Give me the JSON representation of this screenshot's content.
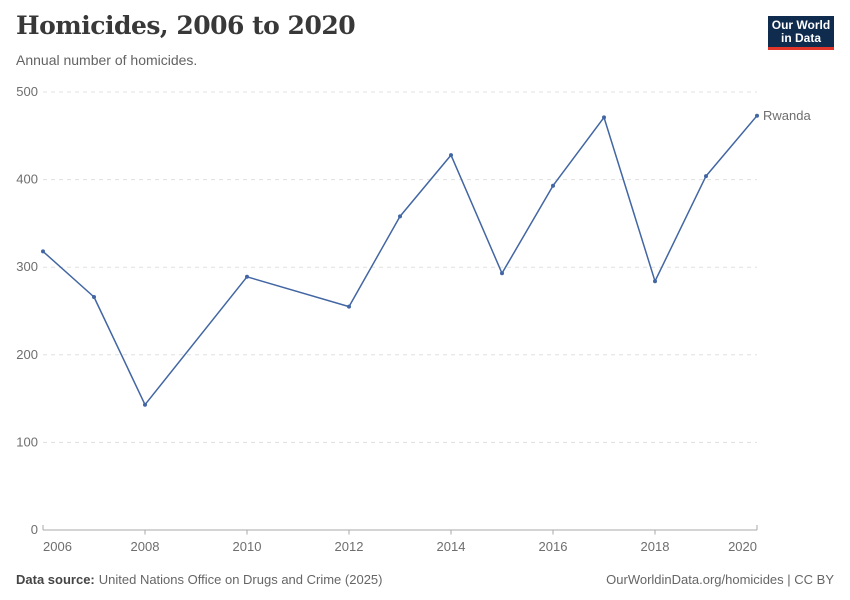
{
  "header": {
    "title": "Homicides, 2006 to 2020",
    "subtitle": "Annual number of homicides."
  },
  "logo": {
    "line1": "Our World",
    "line2": "in Data",
    "bg_color": "#0F2B4E",
    "accent_color": "#E2362B"
  },
  "chart_data": {
    "type": "line",
    "title": "Homicides, 2006 to 2020",
    "subtitle": "Annual number of homicides.",
    "xlabel": "",
    "ylabel": "",
    "xlim": [
      2006,
      2020
    ],
    "ylim": [
      0,
      500
    ],
    "x_ticks": [
      2006,
      2008,
      2010,
      2012,
      2014,
      2016,
      2018,
      2020
    ],
    "y_ticks": [
      0,
      100,
      200,
      300,
      400,
      500
    ],
    "grid": "horizontal-dashed",
    "legend_position": "entity-label-at-line-end",
    "series": [
      {
        "name": "Rwanda",
        "color": "#4266A3",
        "points": [
          {
            "year": 2006,
            "value": 318
          },
          {
            "year": 2007,
            "value": 266
          },
          {
            "year": 2008,
            "value": 143
          },
          {
            "year": 2010,
            "value": 289
          },
          {
            "year": 2012,
            "value": 255
          },
          {
            "year": 2013,
            "value": 358
          },
          {
            "year": 2014,
            "value": 428
          },
          {
            "year": 2015,
            "value": 293
          },
          {
            "year": 2016,
            "value": 393
          },
          {
            "year": 2017,
            "value": 471
          },
          {
            "year": 2018,
            "value": 284
          },
          {
            "year": 2019,
            "value": 404
          },
          {
            "year": 2020,
            "value": 473
          }
        ]
      }
    ]
  },
  "footer": {
    "source_label": "Data source:",
    "source_text": "United Nations Office on Drugs and Crime (2025)",
    "credit": "OurWorldinData.org/homicides | CC BY"
  }
}
